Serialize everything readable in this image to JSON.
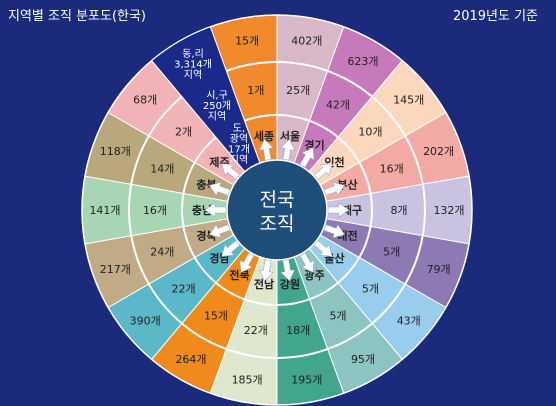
{
  "header": {
    "title": "지역별 조직 분포도(한국)",
    "year_label": "2019년도 기준"
  },
  "center": {
    "line1": "전국",
    "line2": "조직"
  },
  "center_stack": [
    {
      "key": "province",
      "lines": [
        "도,",
        "광역",
        "17개",
        "지역"
      ]
    },
    {
      "key": "city",
      "lines": [
        "시,구",
        "250개",
        "지역"
      ]
    },
    {
      "key": "town",
      "lines": [
        "동,리",
        "3,314개",
        "지역"
      ]
    }
  ],
  "regions": [
    {
      "name": "세종",
      "inner": "1개",
      "outer": "15개",
      "color": "#f08a2c"
    },
    {
      "name": "서울",
      "inner": "25개",
      "outer": "402개",
      "color": "#d9b9c9"
    },
    {
      "name": "경기",
      "inner": "42개",
      "outer": "623개",
      "color": "#c77abb"
    },
    {
      "name": "인천",
      "inner": "10개",
      "outer": "145개",
      "color": "#fbd8bd"
    },
    {
      "name": "부산",
      "inner": "16개",
      "outer": "202개",
      "color": "#f3aaa4"
    },
    {
      "name": "대구",
      "inner": "8개",
      "outer": "132개",
      "color": "#c9c2e1"
    },
    {
      "name": "대전",
      "inner": "5개",
      "outer": "79개",
      "color": "#8e79b4"
    },
    {
      "name": "울산",
      "inner": "5개",
      "outer": "43개",
      "color": "#98cdee"
    },
    {
      "name": "광주",
      "inner": "5개",
      "outer": "95개",
      "color": "#8bc4c0"
    },
    {
      "name": "강원",
      "inner": "18개",
      "outer": "195개",
      "color": "#42a58d"
    },
    {
      "name": "전남",
      "inner": "22개",
      "outer": "185개",
      "color": "#dde8cf"
    },
    {
      "name": "전북",
      "inner": "15개",
      "outer": "264개",
      "color": "#f18a1d"
    },
    {
      "name": "경남",
      "inner": "22개",
      "outer": "390개",
      "color": "#5ab8c9"
    },
    {
      "name": "경북",
      "inner": "24개",
      "outer": "217개",
      "color": "#c0ab86"
    },
    {
      "name": "충남",
      "inner": "16개",
      "outer": "141개",
      "color": "#a8d5b3"
    },
    {
      "name": "충북",
      "inner": "14개",
      "outer": "118개",
      "color": "#baa87d"
    },
    {
      "name": "제주",
      "inner": "2개",
      "outer": "68개",
      "color": "#f2b3b6"
    }
  ],
  "colors": {
    "background": "#1b2a7a",
    "center": "#1f4e7a",
    "divider": "#ffffff",
    "center_stack": "#1b2a8a"
  }
}
